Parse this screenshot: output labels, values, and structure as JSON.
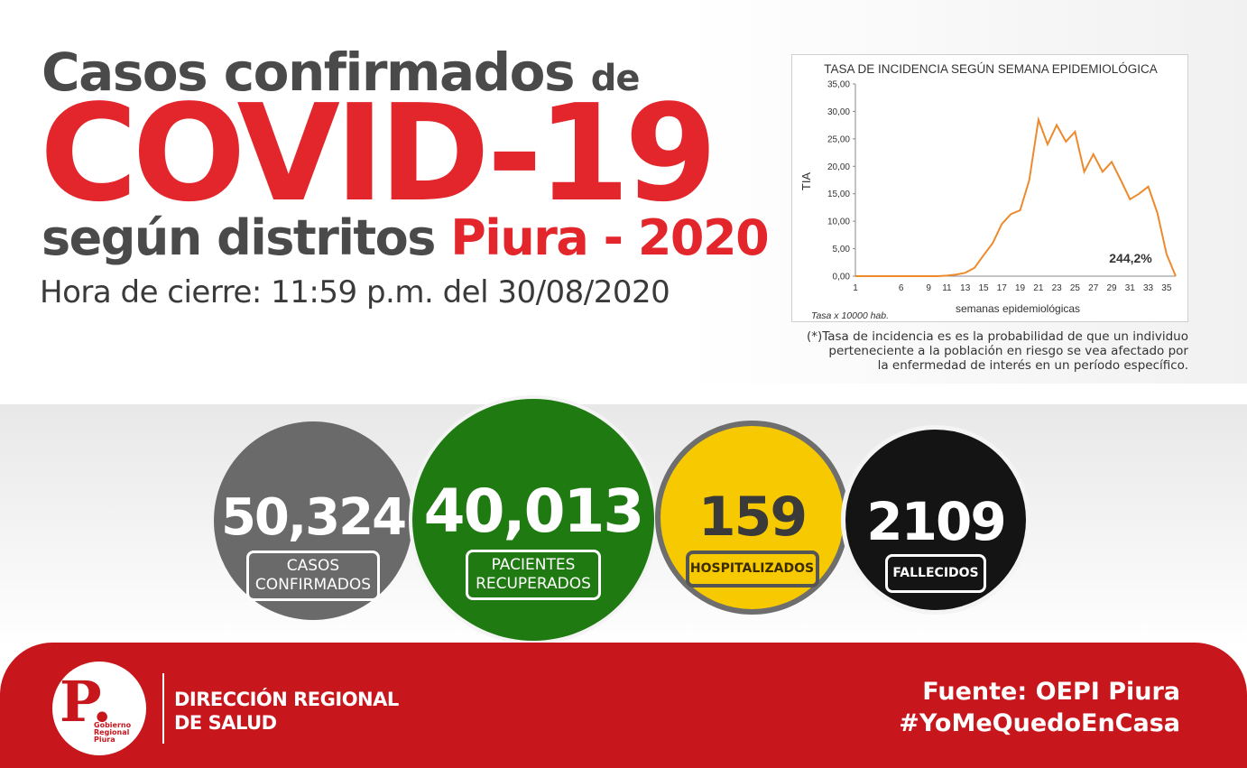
{
  "title": {
    "line1_main": "Casos confirmados",
    "line1_small": "de",
    "main": "COVID-19",
    "line3_gray": "según distritos",
    "line3_red": "Piura - 2020",
    "closing_time": "Hora de cierre: 11:59 p.m. del 30/08/2020"
  },
  "chart": {
    "title": "TASA DE INCIDENCIA SEGÚN SEMANA EPIDEMIOLÓGICA",
    "annotation": "244,2%",
    "footer_left": "Tasa x 10000 hab.",
    "line_color": "#ec8a2d"
  },
  "chart_data": {
    "type": "line",
    "title": "TASA DE INCIDENCIA SEGÚN SEMANA EPIDEMIOLÓGICA",
    "xlabel": "semanas epidemiológicas",
    "ylabel": "TIA",
    "x_ticks": [
      "1",
      "6",
      "9",
      "11",
      "13",
      "15",
      "17",
      "19",
      "21",
      "23",
      "25",
      "27",
      "29",
      "31",
      "33",
      "35"
    ],
    "y_ticks": [
      "0,00",
      "5,00",
      "10,00",
      "15,00",
      "20,00",
      "25,00",
      "30,00",
      "35,00"
    ],
    "ylim": [
      0,
      35
    ],
    "xlim": [
      1,
      36
    ],
    "grid": false,
    "series": [
      {
        "x": [
          1,
          4,
          7,
          10,
          11,
          12,
          13,
          14,
          15,
          16,
          17,
          18,
          19,
          20,
          21,
          22,
          23,
          24,
          25,
          26,
          27,
          28,
          29,
          30,
          31,
          32,
          33,
          34,
          35,
          36
        ],
        "y": [
          0,
          0,
          0,
          0,
          0.1,
          0.3,
          0.6,
          1.5,
          3.8,
          6,
          9.5,
          11.3,
          12,
          17.5,
          28.5,
          24,
          27.5,
          24.5,
          26.3,
          19,
          22.2,
          19,
          20.8,
          17.5,
          14,
          15,
          16.3,
          11.5,
          4,
          0
        ]
      }
    ]
  },
  "footnote": {
    "line1": "(*)Tasa de incidencia es es la probabilidad de que un individuo",
    "line2": "perteneciente a la población en riesgo se vea afectado por",
    "line3": "la enfermedad de interés en un período específico."
  },
  "stats": [
    {
      "value": "50,324",
      "label_1": "CASOS",
      "label_2": "CONFIRMADOS",
      "color": "#6a6a6a"
    },
    {
      "value": "40,013",
      "label_1": "PACIENTES",
      "label_2": "RECUPERADOS",
      "color": "#1f7a12"
    },
    {
      "value": "159",
      "label_1": "HOSPITALIZADOS",
      "color": "#f6c900"
    },
    {
      "value": "2109",
      "label_1": "FALLECIDOS",
      "color": "#141414"
    }
  ],
  "banner": {
    "logo_letter": "P.",
    "logo_text": [
      "Gobierno",
      "Regional",
      "Piura"
    ],
    "dir_line1": "DIRECCIÓN REGIONAL",
    "dir_line2": "DE SALUD",
    "source": "Fuente: OEPI Piura",
    "hashtag": "#YoMeQuedoEnCasa",
    "color": "#c8161d"
  }
}
